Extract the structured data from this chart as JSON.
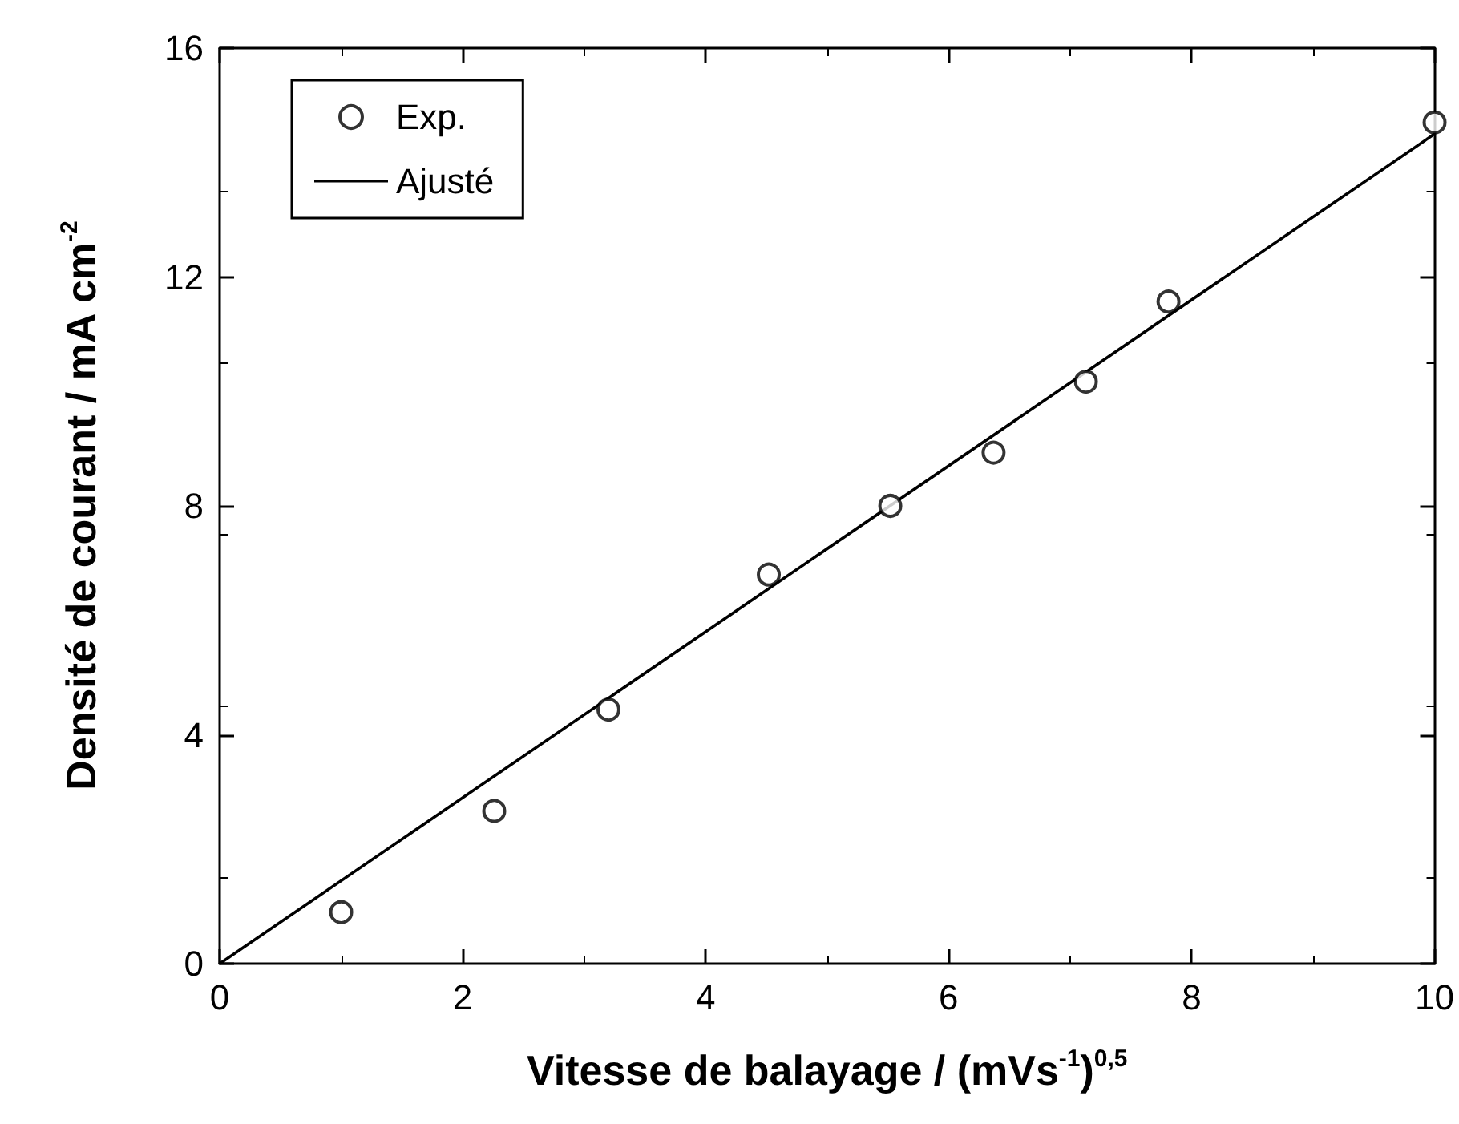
{
  "chart_data": {
    "type": "scatter",
    "xlabel": "Vitesse de balayage / (mVs$^{-1}$)$^{0,5}$",
    "ylabel": "Densité de courant / mA cm$^{-2}$",
    "xlim": [
      0,
      10
    ],
    "xticks": [
      0,
      2,
      4,
      6,
      8,
      10
    ],
    "ylim": [
      0,
      16
    ],
    "yticks": [
      0,
      4,
      8,
      12,
      16
    ],
    "grid": false,
    "legend": "top left",
    "series": [
      {
        "name": "Exp.",
        "marker": "circle",
        "color": "#000000",
        "x": [
          1.0,
          2.26,
          3.2,
          4.52,
          5.52,
          6.37,
          7.13,
          7.81,
          10.0
        ],
        "values": [
          0.9,
          2.67,
          4.44,
          6.8,
          8.0,
          8.93,
          10.17,
          11.57,
          14.7
        ]
      },
      {
        "name": "Ajusté",
        "type": "line",
        "marker": "none",
        "line_style": "solid",
        "color": "#000000",
        "x": [
          0,
          10
        ],
        "values": [
          0,
          14.5
        ]
      }
    ]
  }
}
